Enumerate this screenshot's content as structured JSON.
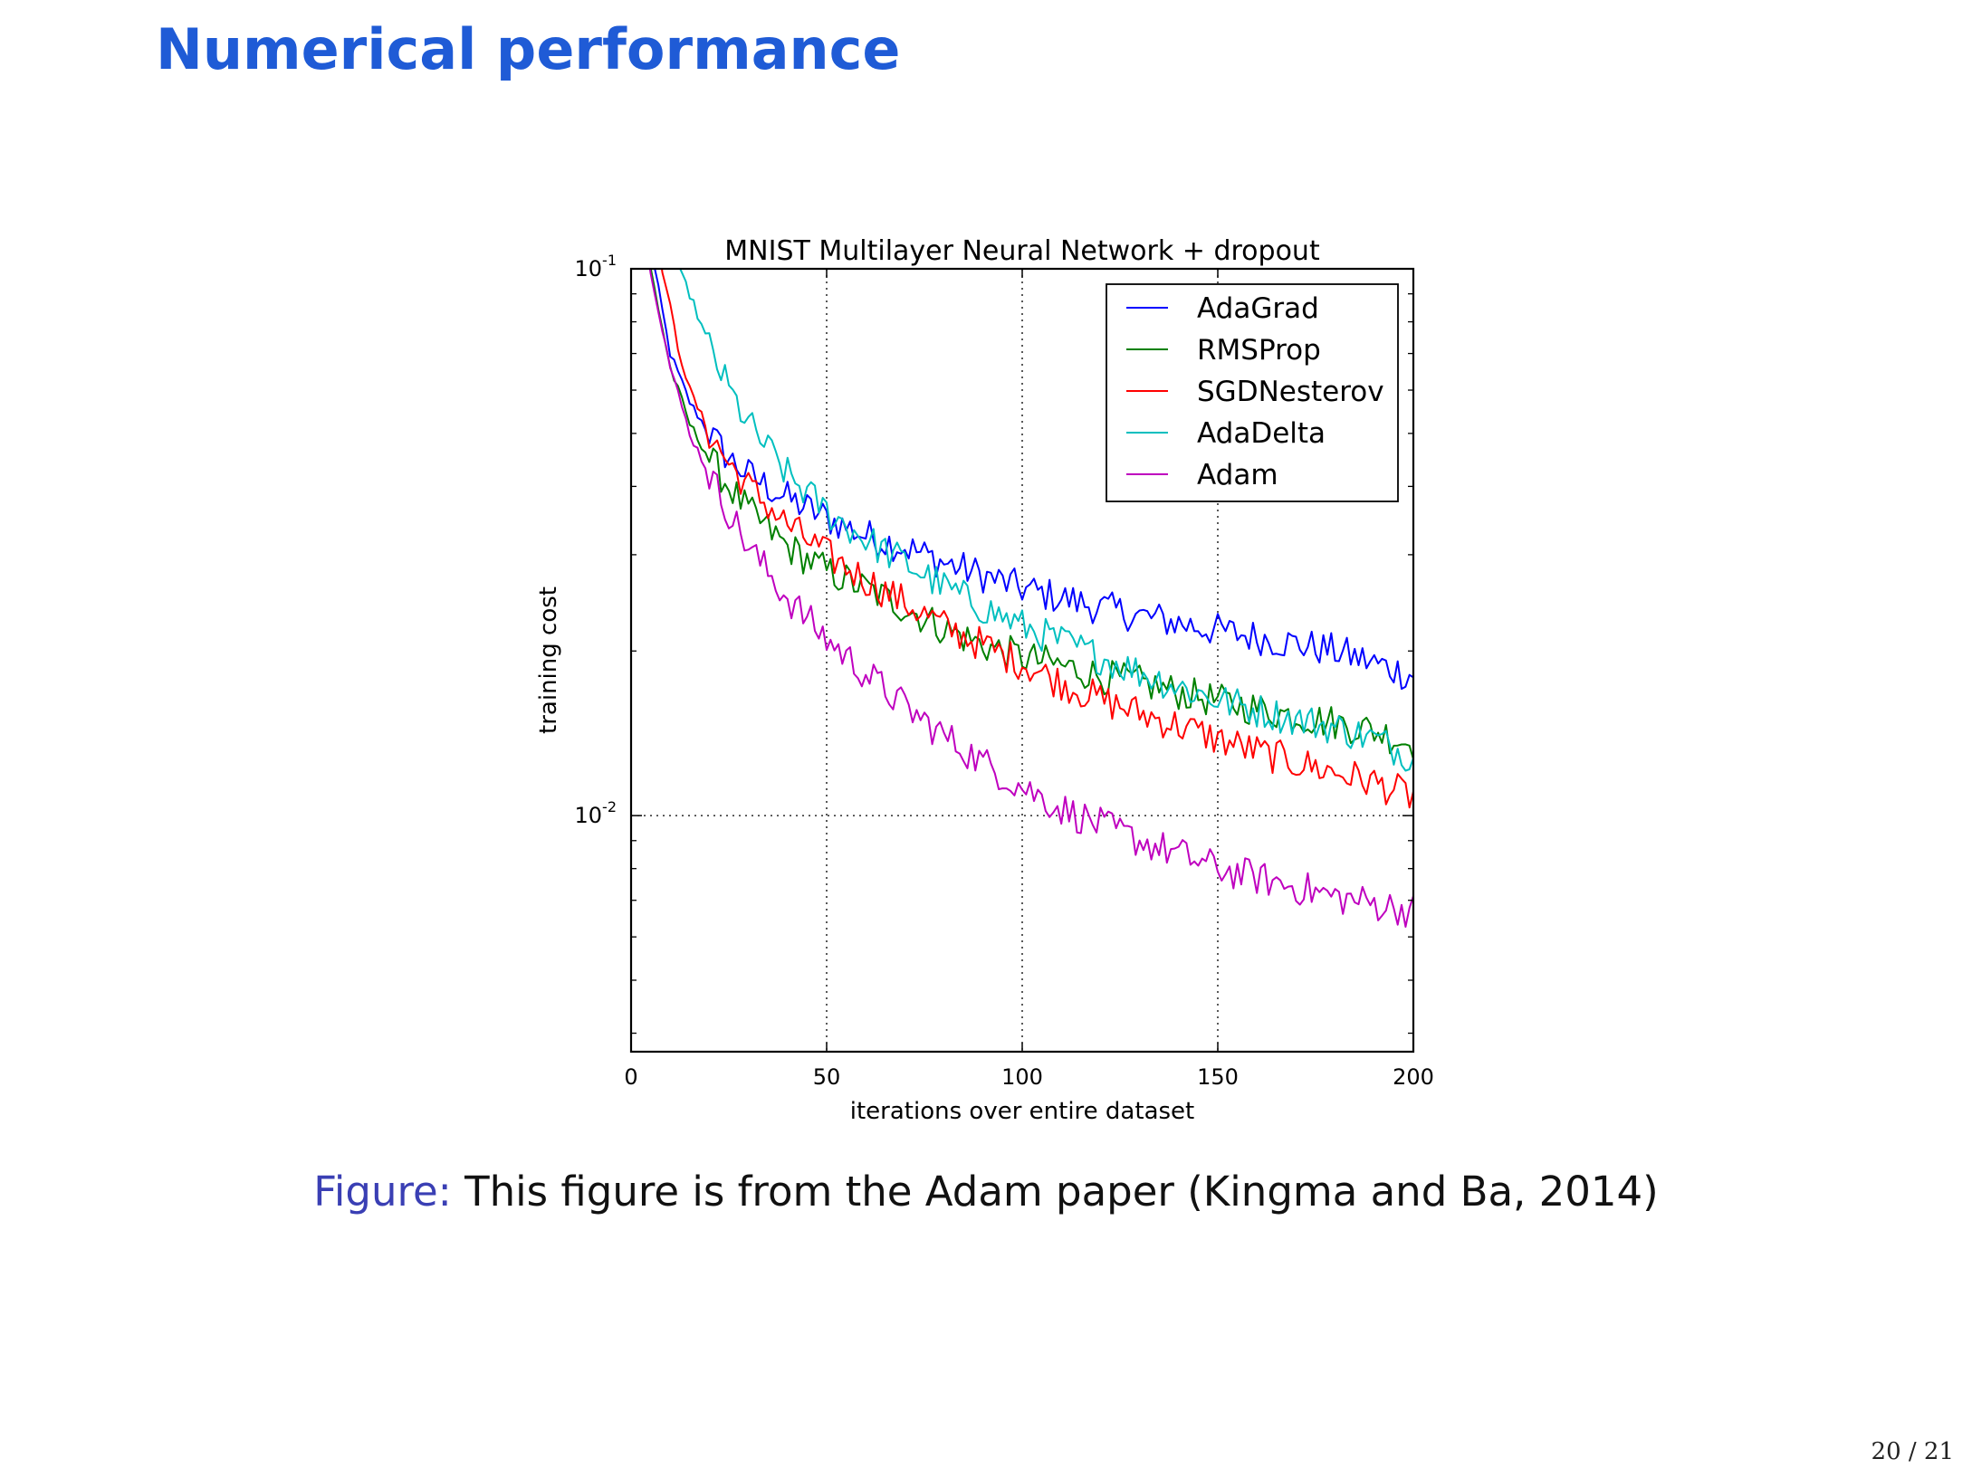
{
  "slide": {
    "title": "Numerical performance",
    "caption_label": "Figure:",
    "caption_text": " This figure is from the Adam paper (Kingma and Ba, 2014)",
    "page_number": "20 / 21"
  },
  "chart_data": {
    "type": "line",
    "title": "MNIST Multilayer Neural Network + dropout",
    "xlabel": "iterations over entire dataset",
    "ylabel": "training cost",
    "xlim": [
      0,
      200
    ],
    "ylim": [
      0.0037,
      0.1
    ],
    "yscale": "log",
    "xticks": [
      0,
      50,
      100,
      150,
      200
    ],
    "yticks": [
      {
        "value": 0.1,
        "base": "10",
        "exp": "-1"
      },
      {
        "value": 0.01,
        "base": "10",
        "exp": "-2"
      }
    ],
    "grid": "dotted",
    "legend_position": "top-right",
    "series": [
      {
        "name": "AdaGrad",
        "color": "#0000ff",
        "points": [
          [
            6,
            0.1
          ],
          [
            10,
            0.07
          ],
          [
            15,
            0.057
          ],
          [
            20,
            0.05
          ],
          [
            25,
            0.045
          ],
          [
            30,
            0.042
          ],
          [
            40,
            0.038
          ],
          [
            50,
            0.035
          ],
          [
            60,
            0.0325
          ],
          [
            70,
            0.031
          ],
          [
            80,
            0.029
          ],
          [
            90,
            0.0275
          ],
          [
            100,
            0.026
          ],
          [
            110,
            0.025
          ],
          [
            120,
            0.024
          ],
          [
            130,
            0.0232
          ],
          [
            140,
            0.0225
          ],
          [
            150,
            0.0218
          ],
          [
            160,
            0.0212
          ],
          [
            170,
            0.0206
          ],
          [
            180,
            0.02
          ],
          [
            190,
            0.019
          ],
          [
            200,
            0.018
          ]
        ]
      },
      {
        "name": "RMSProp",
        "color": "#008000",
        "points": [
          [
            5,
            0.1
          ],
          [
            10,
            0.066
          ],
          [
            15,
            0.052
          ],
          [
            20,
            0.045
          ],
          [
            25,
            0.04
          ],
          [
            30,
            0.036
          ],
          [
            40,
            0.031
          ],
          [
            50,
            0.028
          ],
          [
            60,
            0.026
          ],
          [
            70,
            0.024
          ],
          [
            80,
            0.022
          ],
          [
            90,
            0.0205
          ],
          [
            100,
            0.0195
          ],
          [
            110,
            0.0188
          ],
          [
            120,
            0.018
          ],
          [
            130,
            0.0175
          ],
          [
            140,
            0.0168
          ],
          [
            150,
            0.0162
          ],
          [
            160,
            0.0157
          ],
          [
            170,
            0.0152
          ],
          [
            180,
            0.0148
          ],
          [
            190,
            0.0143
          ],
          [
            200,
            0.0135
          ]
        ]
      },
      {
        "name": "SGDNesterov",
        "color": "#ff0000",
        "points": [
          [
            8,
            0.1
          ],
          [
            12,
            0.072
          ],
          [
            15,
            0.06
          ],
          [
            20,
            0.05
          ],
          [
            25,
            0.044
          ],
          [
            30,
            0.04
          ],
          [
            40,
            0.034
          ],
          [
            50,
            0.03
          ],
          [
            60,
            0.027
          ],
          [
            70,
            0.0245
          ],
          [
            80,
            0.0222
          ],
          [
            90,
            0.0205
          ],
          [
            100,
            0.019
          ],
          [
            110,
            0.0175
          ],
          [
            120,
            0.0163
          ],
          [
            130,
            0.0154
          ],
          [
            140,
            0.0146
          ],
          [
            150,
            0.0138
          ],
          [
            160,
            0.0131
          ],
          [
            170,
            0.0125
          ],
          [
            180,
            0.012
          ],
          [
            190,
            0.0115
          ],
          [
            200,
            0.0108
          ]
        ]
      },
      {
        "name": "AdaDelta",
        "color": "#00bfbf",
        "points": [
          [
            12,
            0.1
          ],
          [
            15,
            0.09
          ],
          [
            20,
            0.072
          ],
          [
            25,
            0.06
          ],
          [
            30,
            0.052
          ],
          [
            40,
            0.042
          ],
          [
            50,
            0.036
          ],
          [
            60,
            0.032
          ],
          [
            70,
            0.029
          ],
          [
            80,
            0.0262
          ],
          [
            90,
            0.024
          ],
          [
            100,
            0.0222
          ],
          [
            110,
            0.0208
          ],
          [
            120,
            0.0195
          ],
          [
            130,
            0.0183
          ],
          [
            140,
            0.0172
          ],
          [
            150,
            0.0163
          ],
          [
            160,
            0.0156
          ],
          [
            170,
            0.015
          ],
          [
            180,
            0.0145
          ],
          [
            190,
            0.0138
          ],
          [
            200,
            0.0128
          ]
        ]
      },
      {
        "name": "Adam",
        "color": "#bf00bf",
        "points": [
          [
            5,
            0.1
          ],
          [
            10,
            0.066
          ],
          [
            15,
            0.05
          ],
          [
            20,
            0.042
          ],
          [
            25,
            0.036
          ],
          [
            30,
            0.031
          ],
          [
            40,
            0.025
          ],
          [
            50,
            0.021
          ],
          [
            60,
            0.0182
          ],
          [
            70,
            0.0158
          ],
          [
            80,
            0.014
          ],
          [
            90,
            0.0125
          ],
          [
            100,
            0.0113
          ],
          [
            110,
            0.0103
          ],
          [
            120,
            0.0096
          ],
          [
            130,
            0.009
          ],
          [
            140,
            0.0085
          ],
          [
            150,
            0.008
          ],
          [
            160,
            0.0077
          ],
          [
            170,
            0.0074
          ],
          [
            180,
            0.0071
          ],
          [
            190,
            0.0069
          ],
          [
            200,
            0.0067
          ]
        ]
      }
    ]
  }
}
